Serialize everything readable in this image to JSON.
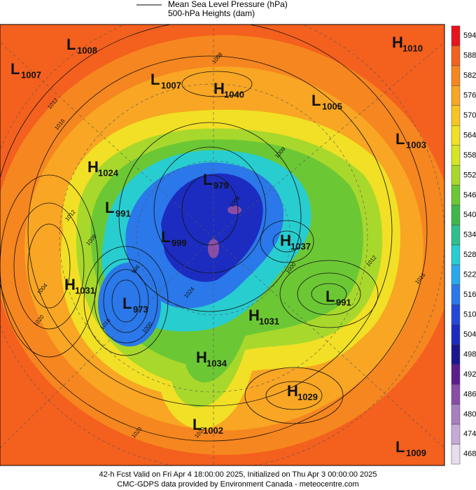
{
  "header": {
    "line1": "Mean Sea Level Pressure (hPa)",
    "line2": "500-hPa Heights (dam)"
  },
  "colorbar": {
    "labels": [
      594,
      588,
      582,
      576,
      570,
      564,
      558,
      552,
      546,
      540,
      534,
      528,
      522,
      516,
      510,
      504,
      498,
      492,
      486,
      480,
      474,
      468
    ],
    "colors": [
      "#e8141c",
      "#f4601e",
      "#f6861f",
      "#f8a623",
      "#f7c523",
      "#f1e025",
      "#d4e624",
      "#a8d82c",
      "#6cc735",
      "#3fb84a",
      "#2ec08c",
      "#28cdd0",
      "#2aa8ee",
      "#2a78ea",
      "#2448d8",
      "#1c2cc0",
      "#1a1690",
      "#5b1e8c",
      "#8a4ea6",
      "#a87fc0",
      "#c7a9d8",
      "#e8dcef"
    ]
  },
  "centers": [
    {
      "letter": "L",
      "value": 1008
    },
    {
      "letter": "L",
      "value": 1007
    },
    {
      "letter": "L",
      "value": 1007
    },
    {
      "letter": "H",
      "value": 1040
    },
    {
      "letter": "L",
      "value": 1005
    },
    {
      "letter": "H",
      "value": 1010
    },
    {
      "letter": "L",
      "value": 1003
    },
    {
      "letter": "H",
      "value": 1024
    },
    {
      "letter": "L",
      "value": 979
    },
    {
      "letter": "L",
      "value": 991
    },
    {
      "letter": "L",
      "value": 999
    },
    {
      "letter": "H",
      "value": 1037
    },
    {
      "letter": "H",
      "value": 1031
    },
    {
      "letter": "L",
      "value": 973
    },
    {
      "letter": "L",
      "value": 991
    },
    {
      "letter": "H",
      "value": 1031
    },
    {
      "letter": "H",
      "value": 1034
    },
    {
      "letter": "H",
      "value": 1029
    },
    {
      "letter": "L",
      "value": 1002
    },
    {
      "letter": "L",
      "value": 1009
    }
  ],
  "contour_labels": [
    1008,
    1012,
    1016,
    1012,
    1008,
    1004,
    1020,
    1024,
    996,
    1000,
    1008,
    1016,
    1020,
    1012,
    1016,
    1020,
    1008,
    1000
  ],
  "footer": {
    "line1": "42-h Fcst Valid on Fri Apr  4 18:00:00 2025, Initialized on Thu Apr  3 00:00:00 2025",
    "line2": "CMC-GDPS data provided by Environment Canada - meteocentre.com"
  }
}
